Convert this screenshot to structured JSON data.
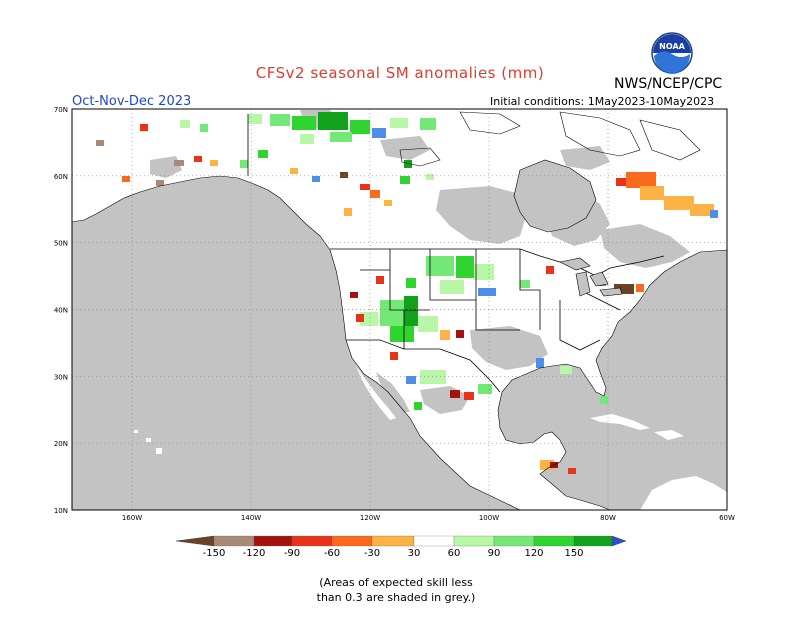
{
  "title": "CFSv2 seasonal SM anomalies (mm)",
  "season": "Oct-Nov-Dec 2023",
  "initial_conditions": "Initial conditions: 1May2023-10May2023",
  "agency": "NWS/NCEP/CPC",
  "logo_text": "NOAA",
  "lat_labels": [
    "70N",
    "60N",
    "50N",
    "40N",
    "30N",
    "20N",
    "10N"
  ],
  "lon_labels": [
    "160W",
    "140W",
    "120W",
    "100W",
    "80W",
    "60W"
  ],
  "colorbar": {
    "labels": [
      "-150",
      "-120",
      "-90",
      "-60",
      "-30",
      "30",
      "60",
      "90",
      "120",
      "150"
    ],
    "colors": [
      "#6b4226",
      "#a98a78",
      "#a3120d",
      "#e8321a",
      "#fb6a1c",
      "#fcb244",
      "#ffffff",
      "#b8f7a8",
      "#74e877",
      "#2fd42f",
      "#11a11a",
      "#4b8fe8",
      "#2a4fd6"
    ]
  },
  "note_line1": "(Areas of expected skill less",
  "note_line2": "than 0.3 are shaded in grey.)",
  "colors": {
    "title": "#e03b2e",
    "season": "#2346c8",
    "land": "#ffffff",
    "low_skill": "#c3c3c3",
    "ocean": "#c3c3c3"
  }
}
